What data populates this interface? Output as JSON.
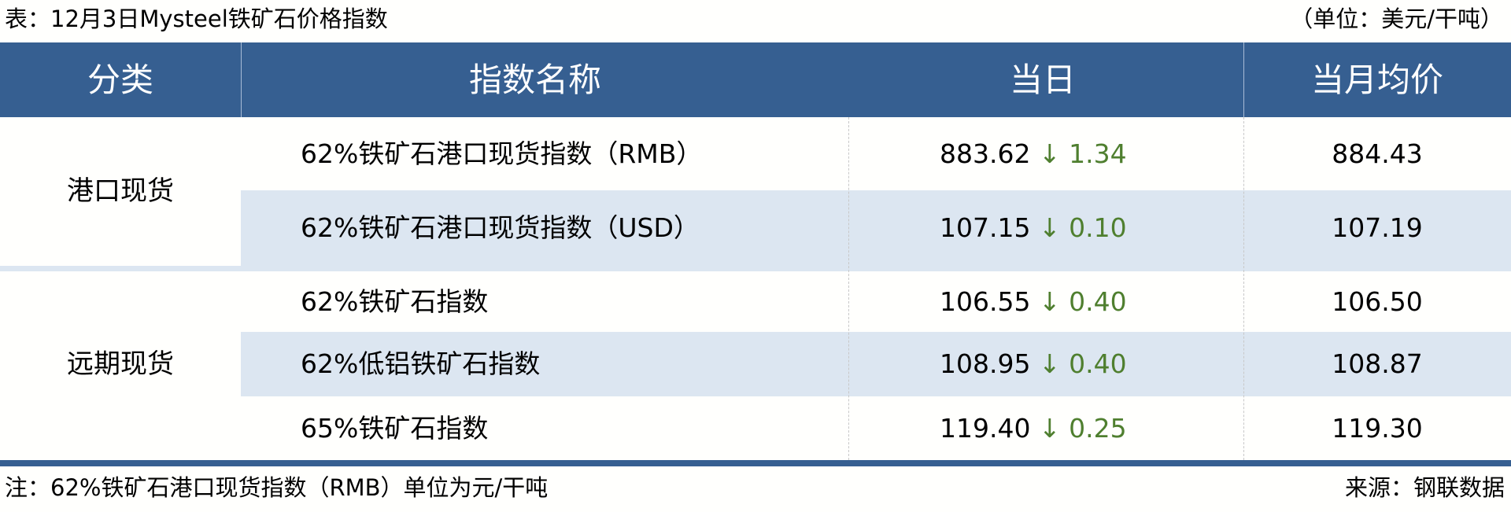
{
  "title": "表：12月3日Mysteel铁矿石价格指数",
  "unit": "（单位：美元/干吨）",
  "colors": {
    "header_bg": "#365f91",
    "band_bg": "#dce6f1",
    "down_color": "#4f7f2f"
  },
  "header": {
    "category": "分类",
    "name": "指数名称",
    "today": "当日",
    "month_avg": "当月均价"
  },
  "groups": [
    {
      "category": "港口现货"
    },
    {
      "category": "远期现货"
    }
  ],
  "rows": [
    {
      "name": "62%铁矿石港口现货指数（RMB）",
      "today": "883.62",
      "direction_icon": "arrow-down-icon",
      "arrow": "↓",
      "change": "1.34",
      "month_avg": "884.43"
    },
    {
      "name": "62%铁矿石港口现货指数（USD）",
      "today": "107.15",
      "direction_icon": "arrow-down-icon",
      "arrow": "↓",
      "change": "0.10",
      "month_avg": "107.19"
    },
    {
      "name": "62%铁矿石指数",
      "today": "106.55",
      "direction_icon": "arrow-down-icon",
      "arrow": "↓",
      "change": "0.40",
      "month_avg": "106.50"
    },
    {
      "name": "62%低铝铁矿石指数",
      "today": "108.95",
      "direction_icon": "arrow-down-icon",
      "arrow": "↓",
      "change": "0.40",
      "month_avg": "108.87"
    },
    {
      "name": "65%铁矿石指数",
      "today": "119.40",
      "direction_icon": "arrow-down-icon",
      "arrow": "↓",
      "change": "0.25",
      "month_avg": "119.30"
    }
  ],
  "footer": {
    "note": "注：62%铁矿石港口现货指数（RMB）单位为元/干吨",
    "source": "来源：钢联数据"
  }
}
